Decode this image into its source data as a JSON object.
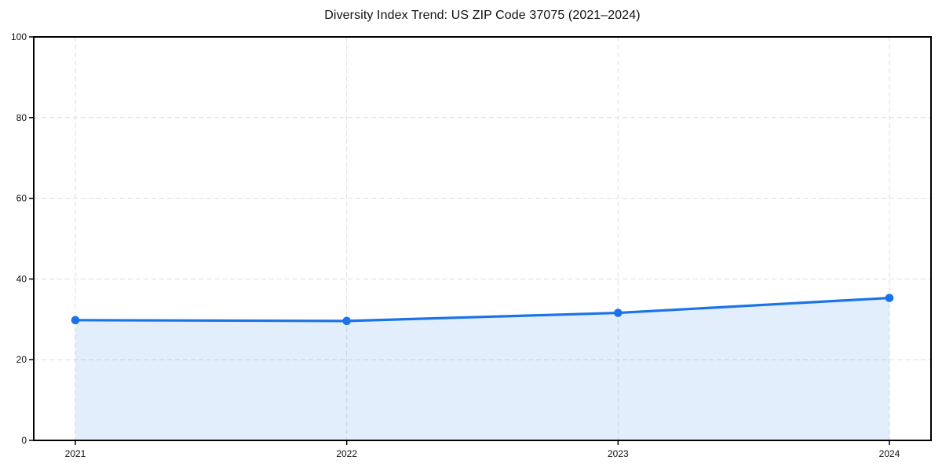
{
  "chart_data": {
    "type": "area",
    "title": "Diversity Index Trend: US ZIP Code 37075 (2021–2024)",
    "categories": [
      "2021",
      "2022",
      "2023",
      "2024"
    ],
    "series": [
      {
        "name": "Diversity Index",
        "values": [
          29.8,
          29.6,
          31.6,
          35.3
        ]
      }
    ],
    "xlabel": "",
    "ylabel": "",
    "ylim": [
      0,
      100
    ],
    "yticks": [
      0,
      20,
      40,
      60,
      80,
      100
    ],
    "grid": "dashed",
    "legend": "none",
    "colors": {
      "line": "#1a73e8",
      "marker": "#1a73e8",
      "fill": "rgba(26,115,232,0.12)",
      "grid": "#dedede",
      "axis": "#000000",
      "tick_text": "#111111",
      "background": "#ffffff"
    }
  }
}
